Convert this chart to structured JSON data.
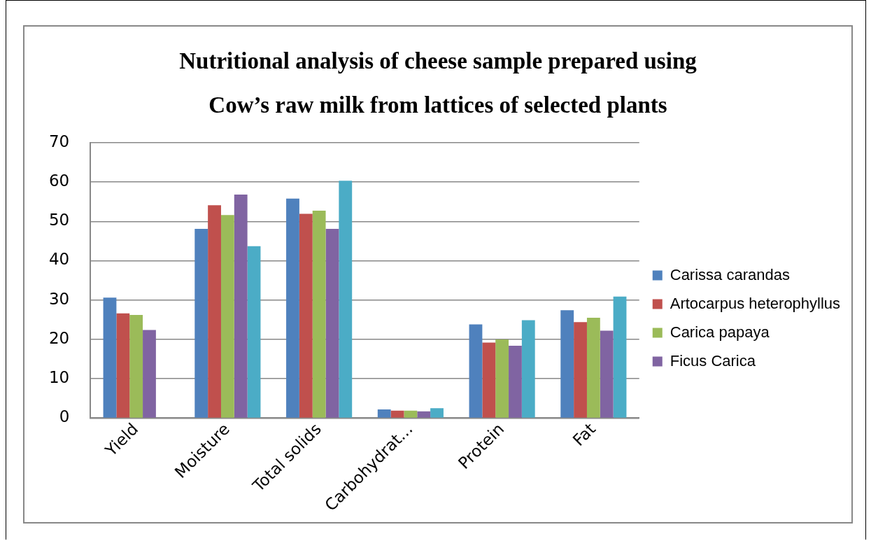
{
  "chart_data": {
    "type": "bar",
    "title": "Nutritional analysis of cheese sample prepared using\nCow’s raw milk from lattices of selected plants",
    "categories": [
      "Yield",
      "Moisture",
      "Total solids",
      "Carbohydrat...",
      "Protein",
      "Fat"
    ],
    "series": [
      {
        "name": "Carissa carandas",
        "color": "#4f81bd",
        "values": [
          30.6,
          48.1,
          55.8,
          2.2,
          23.8,
          27.4
        ]
      },
      {
        "name": "Artocarpus heterophyllus",
        "color": "#c0504d",
        "values": [
          26.6,
          54.1,
          51.9,
          1.9,
          19.2,
          24.4
        ]
      },
      {
        "name": "Carica papaya",
        "color": "#9bbb59",
        "values": [
          26.2,
          51.6,
          52.7,
          1.9,
          20.0,
          25.5
        ]
      },
      {
        "name": "Ficus Carica",
        "color": "#8064a2",
        "values": [
          22.4,
          56.8,
          48.1,
          1.7,
          18.4,
          22.2
        ]
      },
      {
        "color": "#4bacc6",
        "values": [
          null,
          43.7,
          60.3,
          2.5,
          24.9,
          30.9
        ]
      }
    ],
    "ylim": [
      0,
      70
    ],
    "yticks": [
      0,
      10,
      20,
      30,
      40,
      50,
      60,
      70
    ],
    "grid": "y",
    "legend": "right"
  }
}
